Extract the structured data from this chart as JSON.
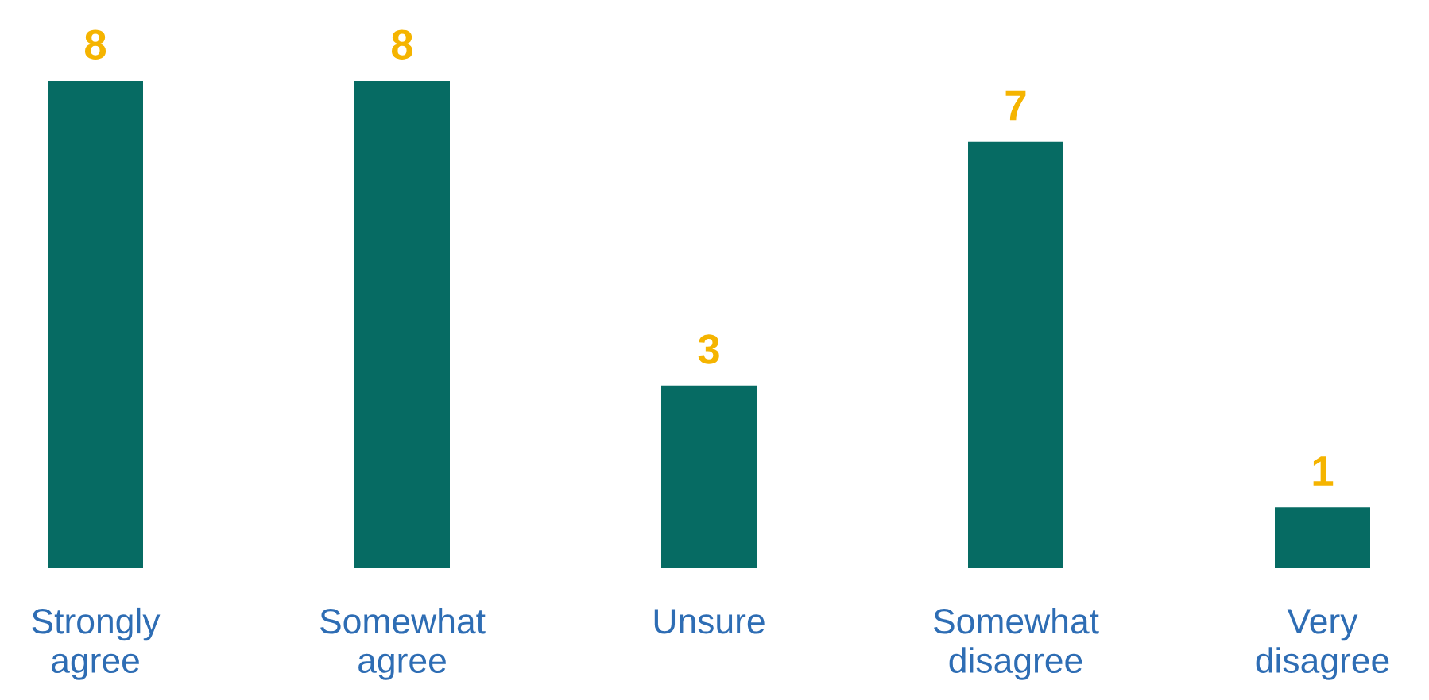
{
  "chart_data": {
    "type": "bar",
    "categories": [
      "Strongly agree",
      "Somewhat agree",
      "Unsure",
      "Somewhat disagree",
      "Very disagree"
    ],
    "values": [
      8,
      8,
      3,
      7,
      1
    ],
    "color": "#066b63",
    "data_labels": true
  }
}
